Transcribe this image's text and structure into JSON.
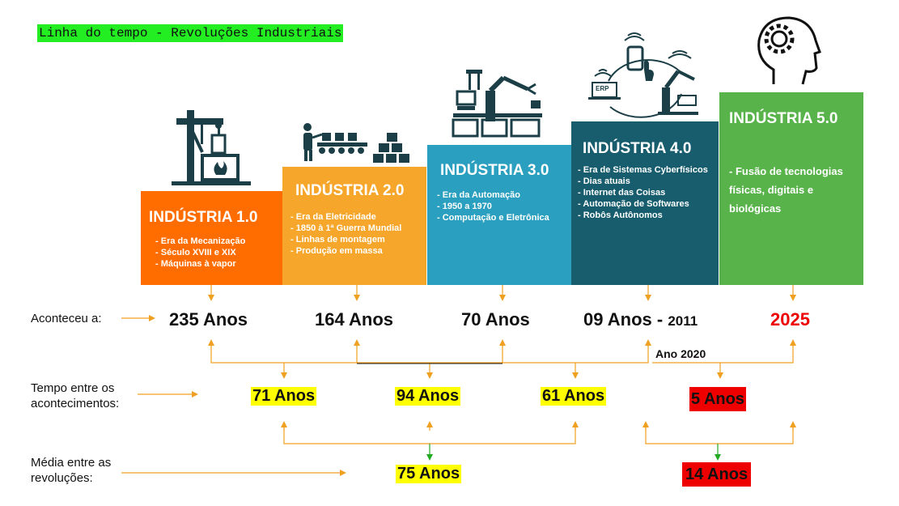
{
  "title": "Linha do tempo - Revoluções Industriais",
  "industries": [
    {
      "name": "INDÚSTRIA 1.0",
      "items": [
        "Era da Mecanização",
        "Século XVIII e XIX",
        "Máquinas à vapor"
      ],
      "color": "#ff6d00",
      "ago": "235 Anos",
      "icon": "oil-pump-icon"
    },
    {
      "name": "INDÚSTRIA 2.0",
      "items": [
        "Era da Eletricidade",
        "1850 à 1ª Guerra Mundial",
        "Linhas de montagem",
        "Produção em massa"
      ],
      "color": "#f6a62a",
      "ago": "164 Anos",
      "icon": "assembly-line-icon"
    },
    {
      "name": "INDÚSTRIA 3.0",
      "items": [
        "Era da Automação",
        "1950 a 1970",
        "Computação e Eletrônica"
      ],
      "color": "#2a9fbf",
      "ago": "70 Anos",
      "icon": "robot-arm-icon"
    },
    {
      "name": "INDÚSTRIA 4.0",
      "items": [
        "Era de Sistemas Cyberfísicos",
        "Dias atuais",
        "Internet das Coisas",
        "Automação de Softwares",
        "Robôs Autônomos"
      ],
      "color": "#175d6e",
      "ago": "09 Anos - ",
      "ago_year": "2011",
      "icon": "iot-network-icon",
      "erp": "ERP"
    },
    {
      "name": "INDÚSTRIA 5.0",
      "items": [
        "Fusão de tecnologias físicas,  digitais e biológicas"
      ],
      "color": "#58b34a",
      "ago": "2025",
      "icon": "brain-gear-icon"
    }
  ],
  "labels": {
    "aconteceu": "Aconteceu a:",
    "tempo": "Tempo entre os acontecimentos:",
    "media": "Média entre as revoluções:",
    "ano2020": "Ano 2020"
  },
  "gaps": [
    "71 Anos",
    "94 Anos",
    "61 Anos",
    "5 Anos"
  ],
  "averages": [
    "75 Anos",
    "14 Anos"
  ],
  "colors": {
    "arrow": "#f0a020",
    "green": "#22aa22",
    "red": "#ee0000",
    "yellow": "#ffff00"
  }
}
